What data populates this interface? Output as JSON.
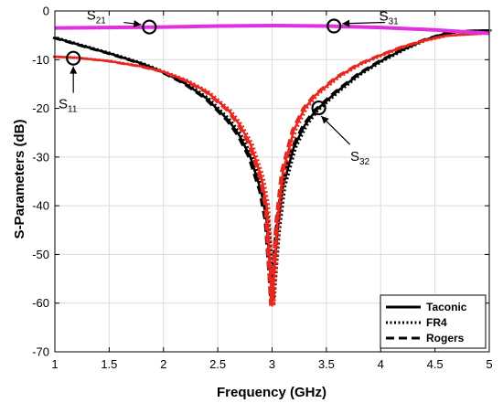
{
  "chart_data": {
    "type": "line",
    "xlabel": "Frequency (GHz)",
    "ylabel": "S-Parameters (dB)",
    "xlim": [
      1,
      5
    ],
    "ylim": [
      -70,
      0
    ],
    "xticks": [
      "1",
      "1.5",
      "2",
      "2.5",
      "3",
      "3.5",
      "4",
      "4.5",
      "5"
    ],
    "yticks": [
      "0",
      "-10",
      "-20",
      "-30",
      "-40",
      "-50",
      "-60",
      "-70"
    ],
    "grid": true,
    "legend": {
      "position": "bottom-right",
      "entries": [
        {
          "label": "Taconic",
          "style": "solid"
        },
        {
          "label": "FR4",
          "style": "dotted"
        },
        {
          "label": "Rogers",
          "style": "dashed"
        }
      ]
    },
    "series": [
      {
        "param": "S11",
        "substrate": "Taconic",
        "color": "#000000",
        "style": "solid",
        "x": [
          1.0,
          1.2,
          1.5,
          1.8,
          2.0,
          2.2,
          2.4,
          2.6,
          2.7,
          2.8,
          2.9,
          2.95,
          3.0,
          3.05,
          3.1,
          3.2,
          3.3,
          3.4,
          3.6,
          3.8,
          4.0,
          4.2,
          4.4,
          4.6,
          4.8,
          5.0
        ],
        "y": [
          -5.5,
          -6.8,
          -8.7,
          -10.8,
          -12.6,
          -14.9,
          -18.0,
          -22.5,
          -25.6,
          -30.0,
          -37.0,
          -43.0,
          -59.0,
          -45.0,
          -36.0,
          -28.0,
          -23.5,
          -20.5,
          -16.5,
          -13.0,
          -10.3,
          -8.0,
          -6.0,
          -4.6,
          -4.1,
          -4.0
        ]
      },
      {
        "param": "S11",
        "substrate": "FR4",
        "color": "#e8281e",
        "style": "solid",
        "x": [
          1.0,
          1.2,
          1.5,
          1.8,
          2.0,
          2.2,
          2.4,
          2.6,
          2.7,
          2.8,
          2.9,
          2.95,
          3.0,
          3.05,
          3.1,
          3.2,
          3.3,
          3.4,
          3.6,
          3.8,
          4.0,
          4.2,
          4.4,
          4.6,
          4.8,
          5.0
        ],
        "y": [
          -9.4,
          -9.6,
          -10.3,
          -11.4,
          -12.5,
          -14.2,
          -16.6,
          -20.4,
          -23.3,
          -27.3,
          -34.0,
          -40.0,
          -60.5,
          -43.0,
          -33.0,
          -24.5,
          -20.0,
          -17.3,
          -13.6,
          -11.0,
          -9.1,
          -7.4,
          -6.1,
          -5.1,
          -4.8,
          -4.6
        ]
      },
      {
        "param": "S21",
        "substrate": "all",
        "color": "#e030e0",
        "style": "solid",
        "x": [
          1.0,
          1.5,
          2.0,
          2.5,
          3.0,
          3.5,
          4.0,
          4.5,
          5.0
        ],
        "y": [
          -3.5,
          -3.4,
          -3.3,
          -3.1,
          -3.0,
          -3.1,
          -3.4,
          -3.9,
          -4.6
        ]
      }
    ],
    "annotations": [
      {
        "label": "S",
        "sub": "21",
        "x": 1.87,
        "y": -3.3
      },
      {
        "label": "S",
        "sub": "31",
        "x": 3.57,
        "y": -3.1
      },
      {
        "label": "S",
        "sub": "11",
        "x": 1.17,
        "y": -9.7
      },
      {
        "label": "S",
        "sub": "32",
        "x": 3.43,
        "y": -19.9
      }
    ]
  }
}
